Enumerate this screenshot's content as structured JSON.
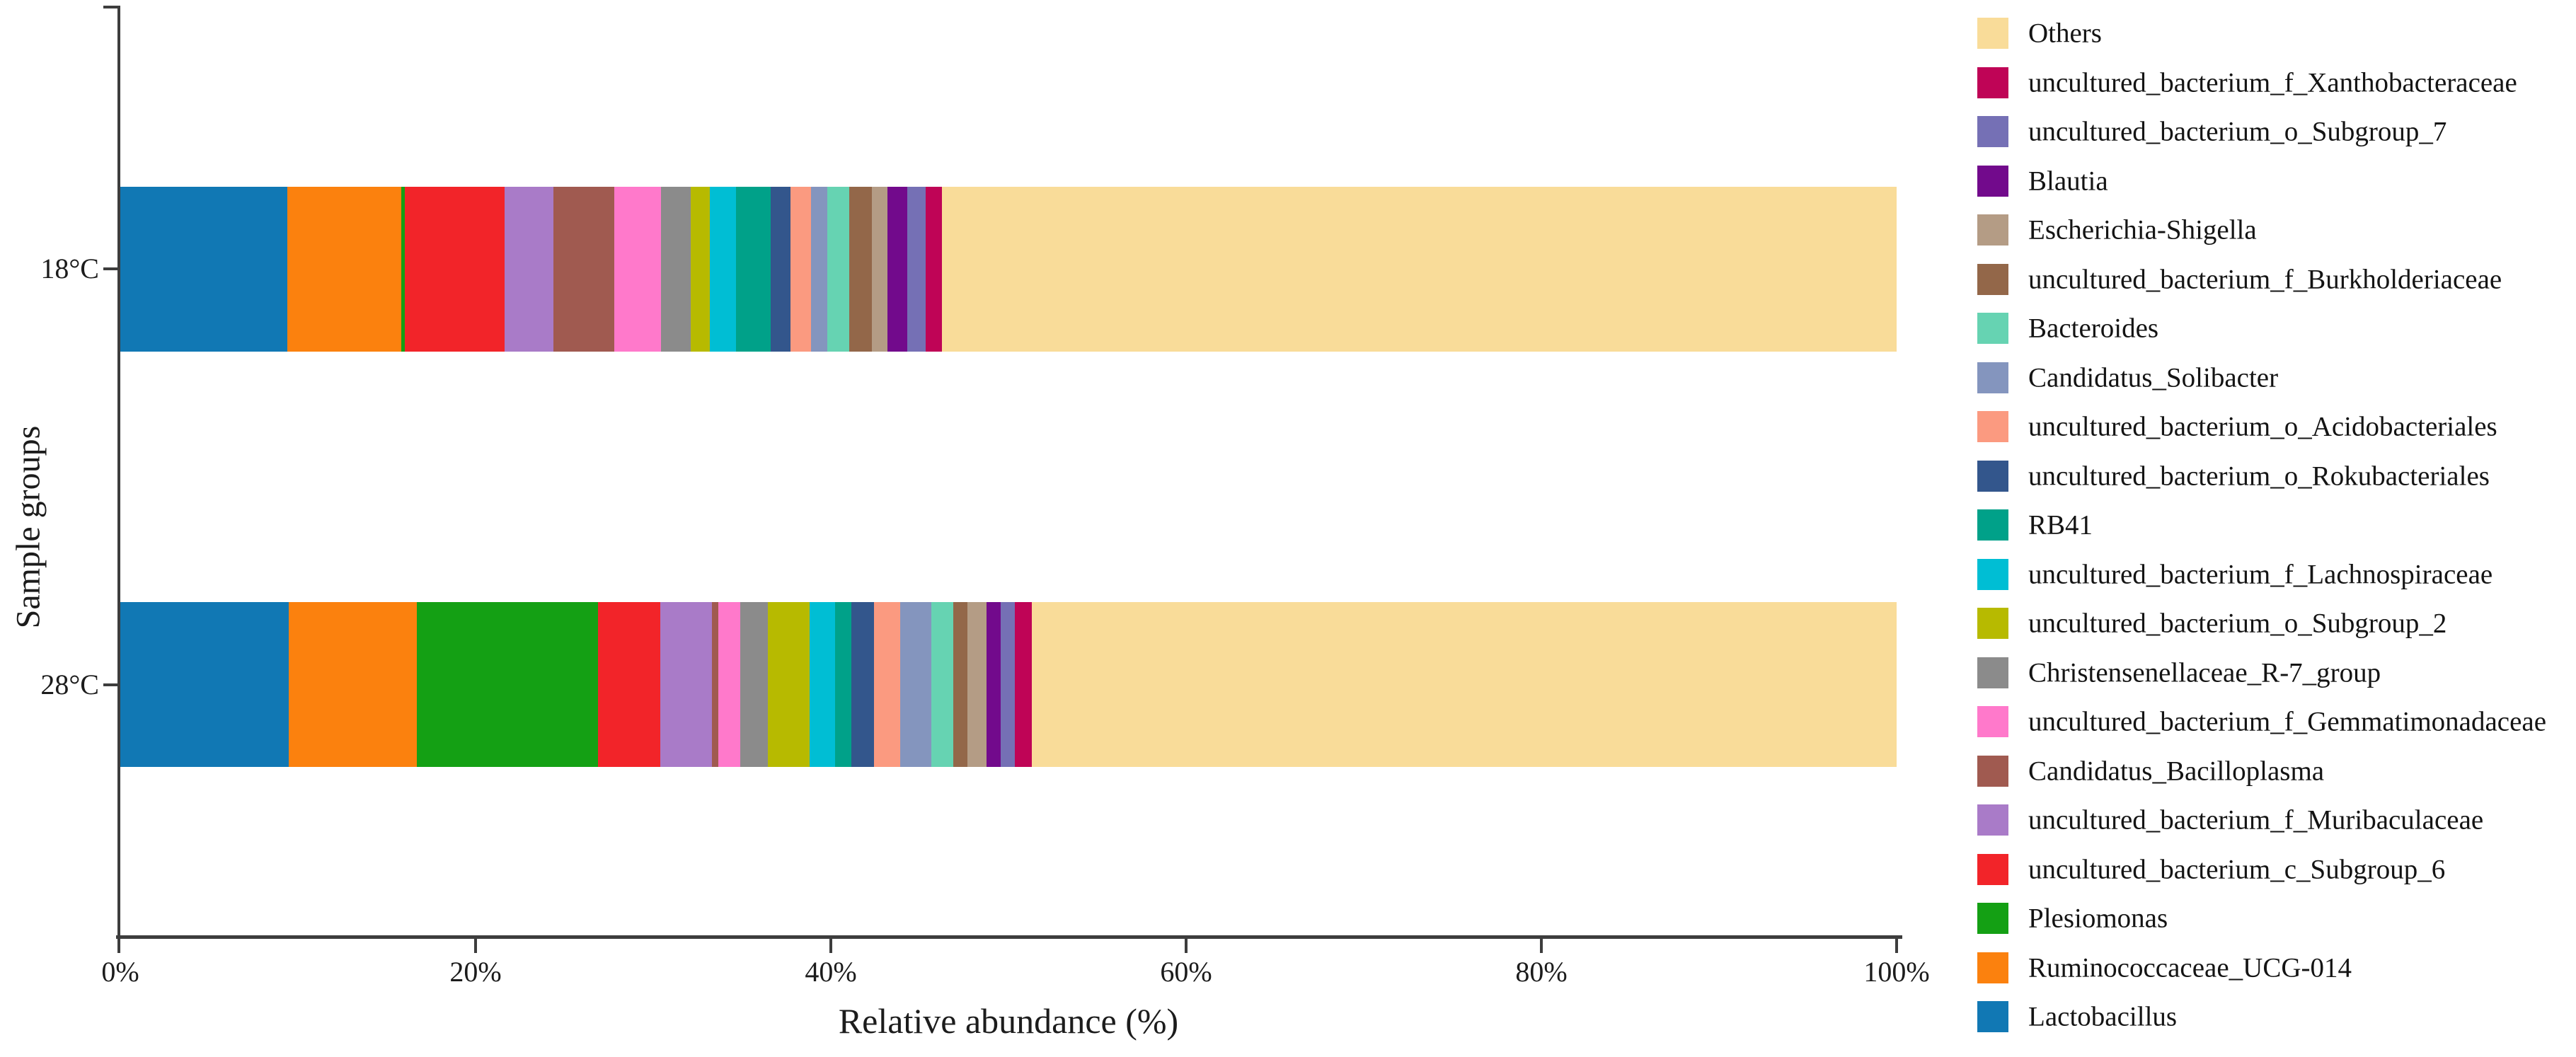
{
  "chart_data": {
    "type": "bar",
    "subtype": "horizontal-stacked-100pct",
    "title": "",
    "xlabel": "Relative abundance (%)",
    "ylabel": "Sample groups",
    "categories": [
      "18°C",
      "28°C"
    ],
    "x_ticks": [
      {
        "value": 0,
        "label": "0%"
      },
      {
        "value": 20,
        "label": "20%"
      },
      {
        "value": 40,
        "label": "40%"
      },
      {
        "value": 60,
        "label": "60%"
      },
      {
        "value": 80,
        "label": "80%"
      },
      {
        "value": 100,
        "label": "100%"
      }
    ],
    "xlim": [
      0,
      100
    ],
    "grid": false,
    "legend_position": "right",
    "legend_order": "top-to-bottom is reverse of stacking; stacking starts at 0% with Lactobacillus",
    "series": [
      {
        "name": "Lactobacillus",
        "color": "#1178B4",
        "values": [
          9.4,
          9.5
        ]
      },
      {
        "name": "Ruminococcaceae_UCG-014",
        "color": "#FB810E",
        "values": [
          6.4,
          7.2
        ]
      },
      {
        "name": "Plesiomonas",
        "color": "#14A014",
        "values": [
          0.2,
          10.2
        ]
      },
      {
        "name": "uncultured_bacterium_c_Subgroup_6",
        "color": "#F22429",
        "values": [
          5.65,
          3.5
        ]
      },
      {
        "name": "uncultured_bacterium_f_Muribaculaceae",
        "color": "#A97BC8",
        "values": [
          2.75,
          2.9
        ]
      },
      {
        "name": "Candidatus_Bacilloplasma",
        "color": "#A05A50",
        "values": [
          3.4,
          0.35
        ]
      },
      {
        "name": "uncultured_bacterium_f_Gemmatimonadaceae",
        "color": "#FF79CB",
        "values": [
          2.65,
          1.25
        ]
      },
      {
        "name": "Christensenellaceae_R-7_group",
        "color": "#8B8B8B",
        "values": [
          1.65,
          1.55
        ]
      },
      {
        "name": "uncultured_bacterium_o_Subgroup_2",
        "color": "#B7BA00",
        "values": [
          1.1,
          2.35
        ]
      },
      {
        "name": "uncultured_bacterium_f_Lachnospiraceae",
        "color": "#00BED4",
        "values": [
          1.45,
          1.45
        ]
      },
      {
        "name": "RB41",
        "color": "#00A189",
        "values": [
          1.95,
          0.9
        ]
      },
      {
        "name": "uncultured_bacterium_o_Rokubacteriales",
        "color": "#33568C",
        "values": [
          1.15,
          1.3
        ]
      },
      {
        "name": "uncultured_bacterium_o_Acidobacteriales",
        "color": "#FB9A80",
        "values": [
          1.15,
          1.45
        ]
      },
      {
        "name": "Candidatus_Solibacter",
        "color": "#8495BE",
        "values": [
          0.9,
          1.75
        ]
      },
      {
        "name": "Bacteroides",
        "color": "#66D3B2",
        "values": [
          1.25,
          1.25
        ]
      },
      {
        "name": "uncultured_bacterium_f_Burkholderiaceae",
        "color": "#936749",
        "values": [
          1.25,
          0.8
        ]
      },
      {
        "name": "Escherichia-Shigella",
        "color": "#B49C85",
        "values": [
          0.9,
          1.05
        ]
      },
      {
        "name": "Blautia",
        "color": "#720A8C",
        "values": [
          1.1,
          0.8
        ]
      },
      {
        "name": "uncultured_bacterium_o_Subgroup_7",
        "color": "#7570B5",
        "values": [
          1.05,
          0.8
        ]
      },
      {
        "name": "uncultured_bacterium_f_Xanthobacteraceae",
        "color": "#BF0456",
        "values": [
          0.9,
          0.95
        ]
      },
      {
        "name": "Others",
        "color": "#F9DC99",
        "values": [
          53.75,
          48.7
        ]
      }
    ]
  },
  "layout_values": {
    "bar_tops": [
      264,
      851
    ],
    "y_tick_centers": [
      380,
      968
    ],
    "legend_start_top": 25,
    "legend_item_spacing": 69.5
  }
}
